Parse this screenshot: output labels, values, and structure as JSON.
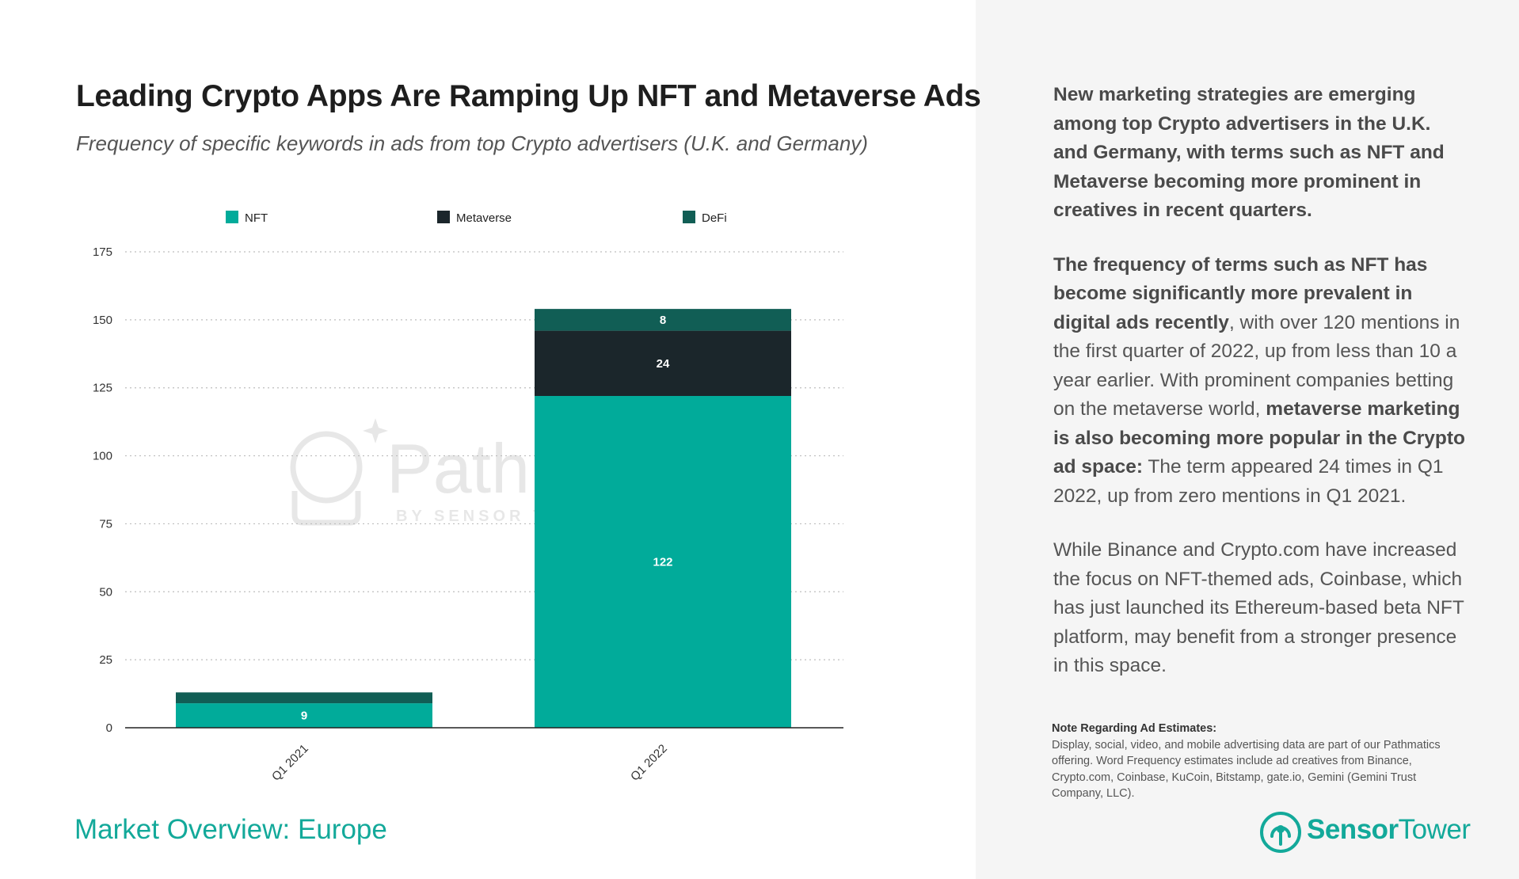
{
  "title": "Leading Crypto Apps Are Ramping Up NFT and Metaverse Ads",
  "subtitle": "Frequency of specific keywords in ads from top Crypto advertisers (U.K. and Germany)",
  "footer_title": "Market Overview: Europe",
  "colors": {
    "nft": "#01ab9a",
    "metaverse": "#1b262b",
    "defi": "#115e55",
    "accent": "#13a99a",
    "panel_bg": "#f5f5f5"
  },
  "watermark": {
    "name": "Pathmatics",
    "tagline": "BY SENSOR TOWER"
  },
  "chart_data": {
    "type": "bar",
    "stacked": true,
    "categories": [
      "Q1 2021",
      "Q1 2022"
    ],
    "series": [
      {
        "name": "NFT",
        "values": [
          9,
          122
        ],
        "color": "#01ab9a"
      },
      {
        "name": "Metaverse",
        "values": [
          0,
          24
        ],
        "color": "#1b262b"
      },
      {
        "name": "DeFi",
        "values": [
          4,
          8
        ],
        "color": "#115e55"
      }
    ],
    "data_labels": [
      [
        "9",
        "",
        ""
      ],
      [
        "122",
        "24",
        "8"
      ]
    ],
    "y_ticks": [
      0,
      25,
      50,
      75,
      100,
      125,
      150,
      175
    ],
    "ylim": [
      0,
      175
    ],
    "grid": true,
    "legend_position": "top"
  },
  "text": {
    "p1": "New marketing strategies are emerging among top Crypto advertisers in the U.K. and Germany, with terms such as NFT and Metaverse becoming more prominent in creatives in recent quarters.",
    "p2_bold1": "The frequency of terms such as NFT has become significantly more prevalent in digital ads recently",
    "p2_text1": ", with over 120 mentions in the first quarter of 2022, up from less than 10 a year earlier. With prominent companies betting on the metaverse world, ",
    "p2_bold2": "metaverse marketing is also becoming more popular in the Crypto ad space:",
    "p2_text2": " The term appeared 24 times in Q1 2022, up from zero mentions in Q1 2021.",
    "p3": "While Binance and Crypto.com have increased the focus on NFT-themed ads, Coinbase, which has just launched its Ethereum-based beta NFT platform, may benefit from a stronger presence in this space."
  },
  "note": {
    "title": "Note Regarding Ad Estimates:",
    "body": "Display, social, video, and mobile advertising data are part of our Pathmatics offering. Word Frequency estimates include ad creatives from Binance, Crypto.com, Coinbase, KuCoin, Bitstamp, gate.io, Gemini (Gemini Trust Company, LLC)."
  },
  "brand": {
    "name_bold": "Sensor",
    "name_light": "Tower",
    "icon": "sensor-tower-logo-icon"
  }
}
